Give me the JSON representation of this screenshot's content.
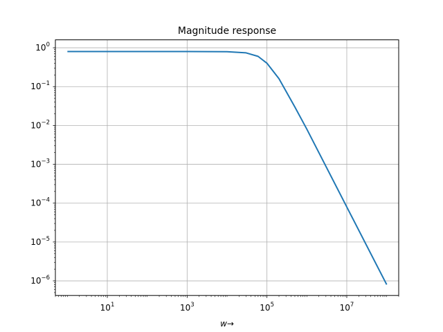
{
  "chart_data": {
    "type": "line",
    "title": "Magnitude response",
    "xlabel": "w→",
    "ylabel": "",
    "xscale": "log",
    "yscale": "log",
    "xlim": [
      0.5,
      200000000
    ],
    "ylim": [
      4.2e-07,
      1.6
    ],
    "grid": true,
    "x_ticks": [
      {
        "value": 10,
        "base": "10",
        "exp": "1"
      },
      {
        "value": 1000,
        "base": "10",
        "exp": "3"
      },
      {
        "value": 100000,
        "base": "10",
        "exp": "5"
      },
      {
        "value": 10000000,
        "base": "10",
        "exp": "7"
      }
    ],
    "y_ticks": [
      {
        "value": 1,
        "base": "10",
        "exp": "0"
      },
      {
        "value": 0.1,
        "base": "10",
        "exp": "−1"
      },
      {
        "value": 0.01,
        "base": "10",
        "exp": "−2"
      },
      {
        "value": 0.001,
        "base": "10",
        "exp": "−3"
      },
      {
        "value": 0.0001,
        "base": "10",
        "exp": "−4"
      },
      {
        "value": 1e-05,
        "base": "10",
        "exp": "−5"
      },
      {
        "value": 1e-06,
        "base": "10",
        "exp": "−6"
      }
    ],
    "series": [
      {
        "color": "#1f77b4",
        "x": [
          1,
          10,
          100,
          1000,
          10000,
          30000,
          60000,
          100000,
          200000,
          500000,
          1000000,
          10000000,
          100000000
        ],
        "y": [
          0.8,
          0.8,
          0.8,
          0.8,
          0.79,
          0.74,
          0.6,
          0.4,
          0.16,
          0.03,
          0.008,
          8e-05,
          8e-07
        ]
      }
    ]
  }
}
